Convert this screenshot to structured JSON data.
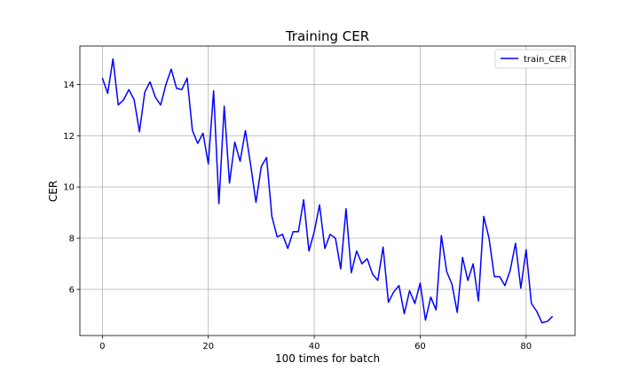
{
  "chart_data": {
    "type": "line",
    "title": "Training CER",
    "xlabel": "100 times for batch",
    "ylabel": "CER",
    "xlim": [
      -4.25,
      89.25
    ],
    "ylim": [
      4.2,
      15.5
    ],
    "xticks": [
      0,
      20,
      40,
      60,
      80
    ],
    "yticks": [
      6,
      8,
      10,
      12,
      14
    ],
    "grid": true,
    "legend_position": "top-right",
    "series": [
      {
        "name": "train_CER",
        "color": "#0000ff",
        "x": [
          0,
          1,
          2,
          3,
          4,
          5,
          6,
          7,
          8,
          9,
          10,
          11,
          12,
          13,
          14,
          15,
          16,
          17,
          18,
          19,
          20,
          21,
          22,
          23,
          24,
          25,
          26,
          27,
          28,
          29,
          30,
          31,
          32,
          33,
          34,
          35,
          36,
          37,
          38,
          39,
          40,
          41,
          42,
          43,
          44,
          45,
          46,
          47,
          48,
          49,
          50,
          51,
          52,
          53,
          54,
          55,
          56,
          57,
          58,
          59,
          60,
          61,
          62,
          63,
          64,
          65,
          66,
          67,
          68,
          69,
          70,
          71,
          72,
          73,
          74,
          75,
          76,
          77,
          78,
          79,
          80,
          81,
          82,
          83,
          84,
          85
        ],
        "values": [
          14.25,
          13.65,
          15.0,
          13.2,
          13.4,
          13.8,
          13.4,
          12.15,
          13.7,
          14.1,
          13.5,
          13.2,
          14.0,
          14.6,
          13.85,
          13.8,
          14.25,
          12.2,
          11.7,
          12.1,
          10.9,
          13.75,
          9.35,
          13.15,
          10.15,
          11.75,
          11.0,
          12.2,
          10.85,
          9.4,
          10.8,
          11.15,
          8.85,
          8.05,
          8.15,
          7.6,
          8.25,
          8.25,
          9.5,
          7.5,
          8.25,
          9.3,
          7.6,
          8.15,
          8.0,
          6.8,
          9.15,
          6.65,
          7.5,
          7.0,
          7.2,
          6.6,
          6.35,
          7.65,
          5.5,
          5.9,
          6.15,
          5.05,
          5.95,
          5.45,
          6.25,
          4.8,
          5.7,
          5.2,
          8.1,
          6.7,
          6.2,
          5.1,
          7.25,
          6.35,
          7.0,
          5.55,
          8.85,
          8.0,
          6.5,
          6.5,
          6.15,
          6.75,
          7.8,
          6.05,
          7.55,
          5.45,
          5.15,
          4.7,
          4.75,
          4.95
        ]
      }
    ]
  }
}
